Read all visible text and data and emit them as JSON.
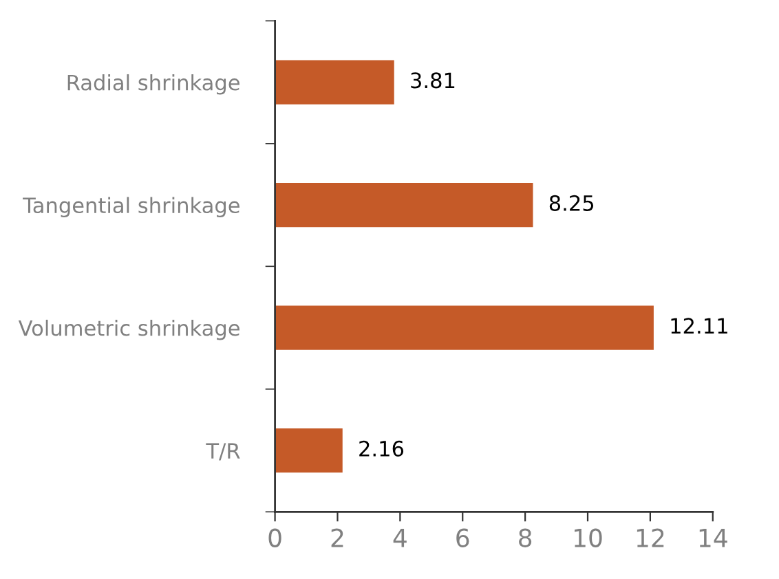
{
  "chart_data": {
    "type": "bar",
    "orientation": "horizontal",
    "categories": [
      "Radial shrinkage",
      "Tangential shrinkage",
      "Volumetric shrinkage",
      "T/R"
    ],
    "values": [
      3.81,
      8.25,
      12.11,
      2.16
    ],
    "color": "#c55a28",
    "xlim": [
      0,
      14
    ],
    "xticks": [
      0,
      2,
      4,
      6,
      8,
      10,
      12,
      14
    ],
    "data_labels": true,
    "grid": false
  }
}
